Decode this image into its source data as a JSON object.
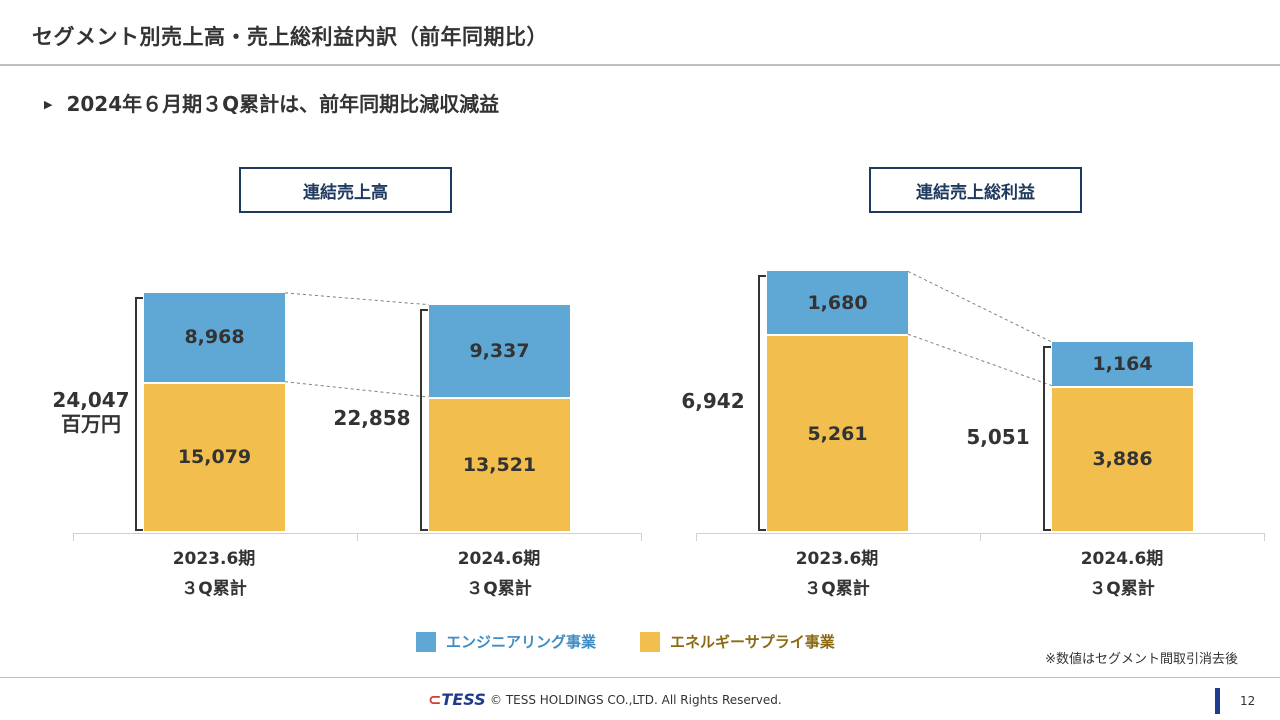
{
  "header": {
    "title": "セグメント別売上高・売上総利益内訳（前年同期比）",
    "bullet_mark": "▶",
    "bullet": "2024年６月期３Q累計は、前年同期比減収減益"
  },
  "chart_data": [
    {
      "type": "bar",
      "title": "連結売上高",
      "unit": "百万円",
      "categories": [
        "2023.6期\n３Q累計",
        "2024.6期\n３Q累計"
      ],
      "category_lines": [
        [
          "2023.6期",
          "３Q累計"
        ],
        [
          "2024.6期",
          "３Q累計"
        ]
      ],
      "series": [
        {
          "name": "エネルギーサプライ事業",
          "values": [
            15079,
            13521
          ],
          "labels": [
            "15,079",
            "13,521"
          ]
        },
        {
          "name": "エンジニアリング事業",
          "values": [
            8968,
            9337
          ],
          "labels": [
            "8,968",
            "9,337"
          ]
        }
      ],
      "totals": [
        "24,047",
        "22,858"
      ],
      "total_unit_label": "百万円"
    },
    {
      "type": "bar",
      "title": "連結売上総利益",
      "categories": [
        "2023.6期\n３Q累計",
        "2024.6期\n３Q累計"
      ],
      "category_lines": [
        [
          "2023.6期",
          "３Q累計"
        ],
        [
          "2024.6期",
          "３Q累計"
        ]
      ],
      "series": [
        {
          "name": "エネルギーサプライ事業",
          "values": [
            5261,
            3886
          ],
          "labels": [
            "5,261",
            "3,886"
          ]
        },
        {
          "name": "エンジニアリング事業",
          "values": [
            1680,
            1164
          ],
          "labels": [
            "1,680",
            "1,164"
          ]
        }
      ],
      "totals": [
        "6,942",
        "5,051"
      ]
    }
  ],
  "legend": {
    "items": [
      {
        "label": "エンジニアリング事業",
        "color": "#5fa8d6",
        "text_color": "#3f8cc4"
      },
      {
        "label": "エネルギーサプライ事業",
        "color": "#f2bf4e",
        "text_color": "#8c6a12"
      }
    ]
  },
  "note": "※数値はセグメント間取引消去後",
  "footer": {
    "logo": "TESS",
    "copyright": "© TESS HOLDINGS CO.,LTD. All Rights Reserved.",
    "page": "12"
  }
}
